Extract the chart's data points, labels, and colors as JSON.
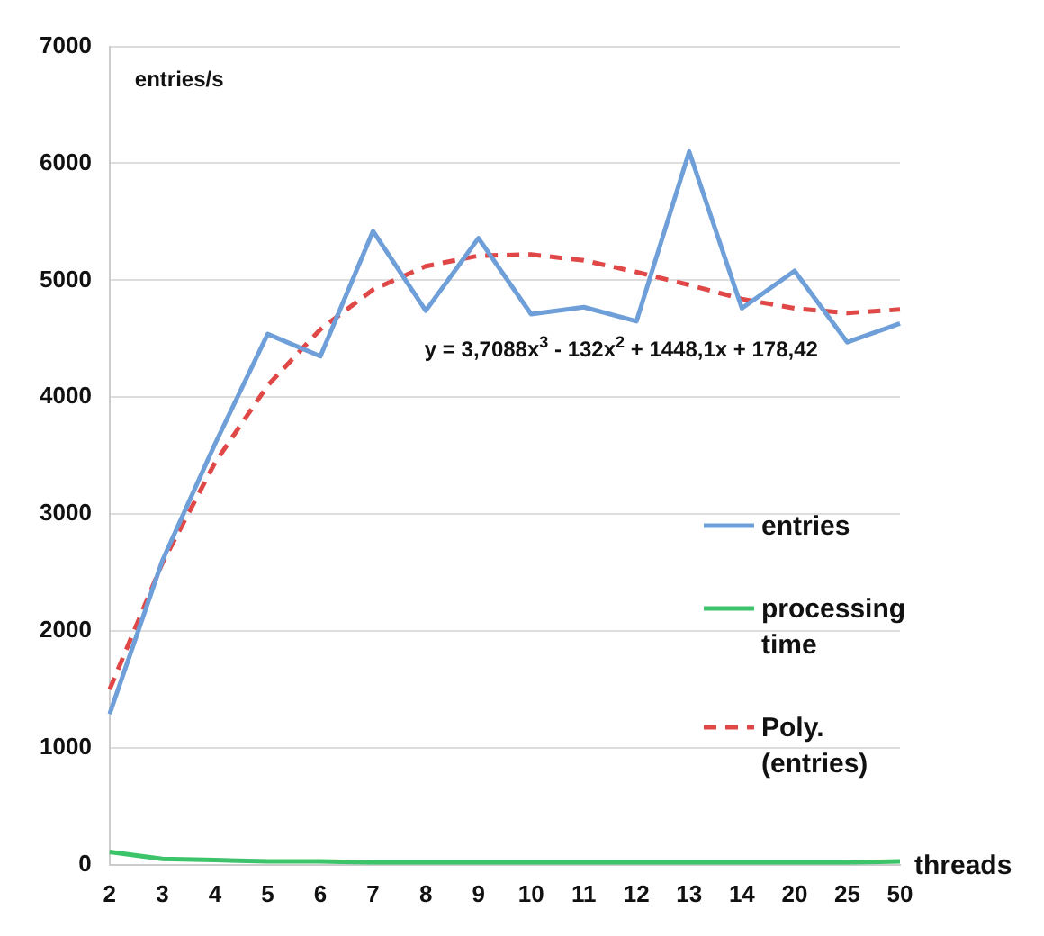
{
  "chart_data": {
    "type": "line",
    "xlabel": "threads",
    "ylabel": "entries/s",
    "categories": [
      "2",
      "3",
      "4",
      "5",
      "6",
      "7",
      "8",
      "9",
      "10",
      "11",
      "12",
      "13",
      "14",
      "20",
      "25",
      "50"
    ],
    "series": [
      {
        "name": "entries",
        "color": "#6f9fd8",
        "values": [
          1290,
          2600,
          3600,
          4540,
          4350,
          5420,
          4740,
          5360,
          4710,
          4770,
          4650,
          6100,
          4760,
          5080,
          4470,
          4630
        ]
      },
      {
        "name": "processing time",
        "color": "#3cc46a",
        "values": [
          110,
          50,
          40,
          30,
          30,
          20,
          20,
          20,
          20,
          20,
          20,
          20,
          20,
          20,
          20,
          30
        ]
      },
      {
        "name": "Poly. (entries)",
        "color": "#e04848",
        "line_style": "dashed",
        "values": [
          1500,
          2580,
          3440,
          4100,
          4580,
          4920,
          5120,
          5210,
          5220,
          5170,
          5070,
          4960,
          4840,
          4760,
          4720,
          4750
        ]
      }
    ],
    "ylim": [
      0,
      7000
    ],
    "yticks": [
      0,
      1000,
      2000,
      3000,
      4000,
      5000,
      6000,
      7000
    ],
    "grid": "y",
    "legend": "right",
    "marker": "none",
    "line_style": "solid",
    "annotations": [
      "y = 3,7088x$^{3}$ - 132x$^{2}$ + 1448,1x + 178,42"
    ]
  }
}
